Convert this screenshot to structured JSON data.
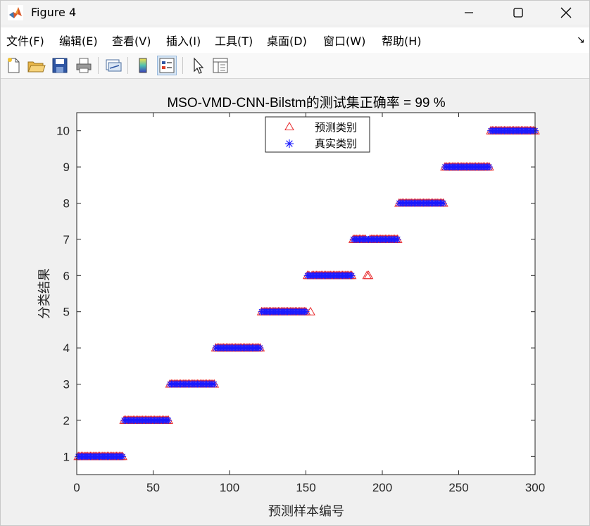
{
  "window": {
    "title": "Figure 4",
    "minimize_icon": "minimize-icon",
    "maximize_icon": "maximize-icon",
    "close_icon": "close-icon"
  },
  "menu": {
    "items": [
      "文件(F)",
      "编辑(E)",
      "查看(V)",
      "插入(I)",
      "工具(T)",
      "桌面(D)",
      "窗口(W)",
      "帮助(H)"
    ],
    "dock_glyph": "↘"
  },
  "toolbar": {
    "icons": [
      "new-figure-icon",
      "open-file-icon",
      "save-icon",
      "print-icon",
      "link-plot-icon",
      "colorbar-icon",
      "legend-icon",
      "pointer-icon",
      "property-editor-icon"
    ]
  },
  "colors": {
    "predicted": "#e8292b",
    "actual": "#1a1aff",
    "axes_bg": "#ffffff",
    "figure_bg": "#f0f0f0"
  },
  "chart_data": {
    "type": "scatter",
    "title": "MSO-VMD-CNN-Bilstm的测试集正确率 = 99 %",
    "xlabel": "预测样本编号",
    "ylabel": "分类结果",
    "xlim": [
      0,
      300
    ],
    "ylim": [
      0.5,
      10.5
    ],
    "xticks": [
      "0",
      "50",
      "100",
      "150",
      "200",
      "250",
      "300"
    ],
    "yticks": [
      "1",
      "2",
      "3",
      "4",
      "5",
      "6",
      "7",
      "8",
      "9",
      "10"
    ],
    "legend": {
      "position": "top-center",
      "entries": [
        "预测类别",
        "真实类别"
      ]
    },
    "samples_per_class": 30,
    "classes": [
      1,
      2,
      3,
      4,
      5,
      6,
      7,
      8,
      9,
      10
    ],
    "series": [
      {
        "name": "预测类别",
        "marker": "triangle",
        "description_segments": [
          {
            "x_from": 1,
            "x_to": 30,
            "y": 1
          },
          {
            "x_from": 31,
            "x_to": 60,
            "y": 2
          },
          {
            "x_from": 61,
            "x_to": 90,
            "y": 3
          },
          {
            "x_from": 91,
            "x_to": 120,
            "y": 4
          },
          {
            "x_from": 121,
            "x_to": 150,
            "y": 5
          },
          {
            "x_from": 151,
            "x_to": 180,
            "y": 6
          },
          {
            "x_from": 181,
            "x_to": 210,
            "y": 7
          },
          {
            "x_from": 211,
            "x_to": 240,
            "y": 8
          },
          {
            "x_from": 241,
            "x_to": 270,
            "y": 9
          },
          {
            "x_from": 271,
            "x_to": 300,
            "y": 10
          }
        ],
        "misclassified": [
          {
            "x": 153,
            "y": 5
          },
          {
            "x": 190,
            "y": 6
          },
          {
            "x": 191,
            "y": 6
          }
        ]
      },
      {
        "name": "真实类别",
        "marker": "asterisk",
        "description_segments": [
          {
            "x_from": 1,
            "x_to": 30,
            "y": 1
          },
          {
            "x_from": 31,
            "x_to": 60,
            "y": 2
          },
          {
            "x_from": 61,
            "x_to": 90,
            "y": 3
          },
          {
            "x_from": 91,
            "x_to": 120,
            "y": 4
          },
          {
            "x_from": 121,
            "x_to": 150,
            "y": 5
          },
          {
            "x_from": 151,
            "x_to": 180,
            "y": 6
          },
          {
            "x_from": 181,
            "x_to": 210,
            "y": 7
          },
          {
            "x_from": 211,
            "x_to": 240,
            "y": 8
          },
          {
            "x_from": 241,
            "x_to": 270,
            "y": 9
          },
          {
            "x_from": 271,
            "x_to": 300,
            "y": 10
          }
        ]
      }
    ]
  }
}
